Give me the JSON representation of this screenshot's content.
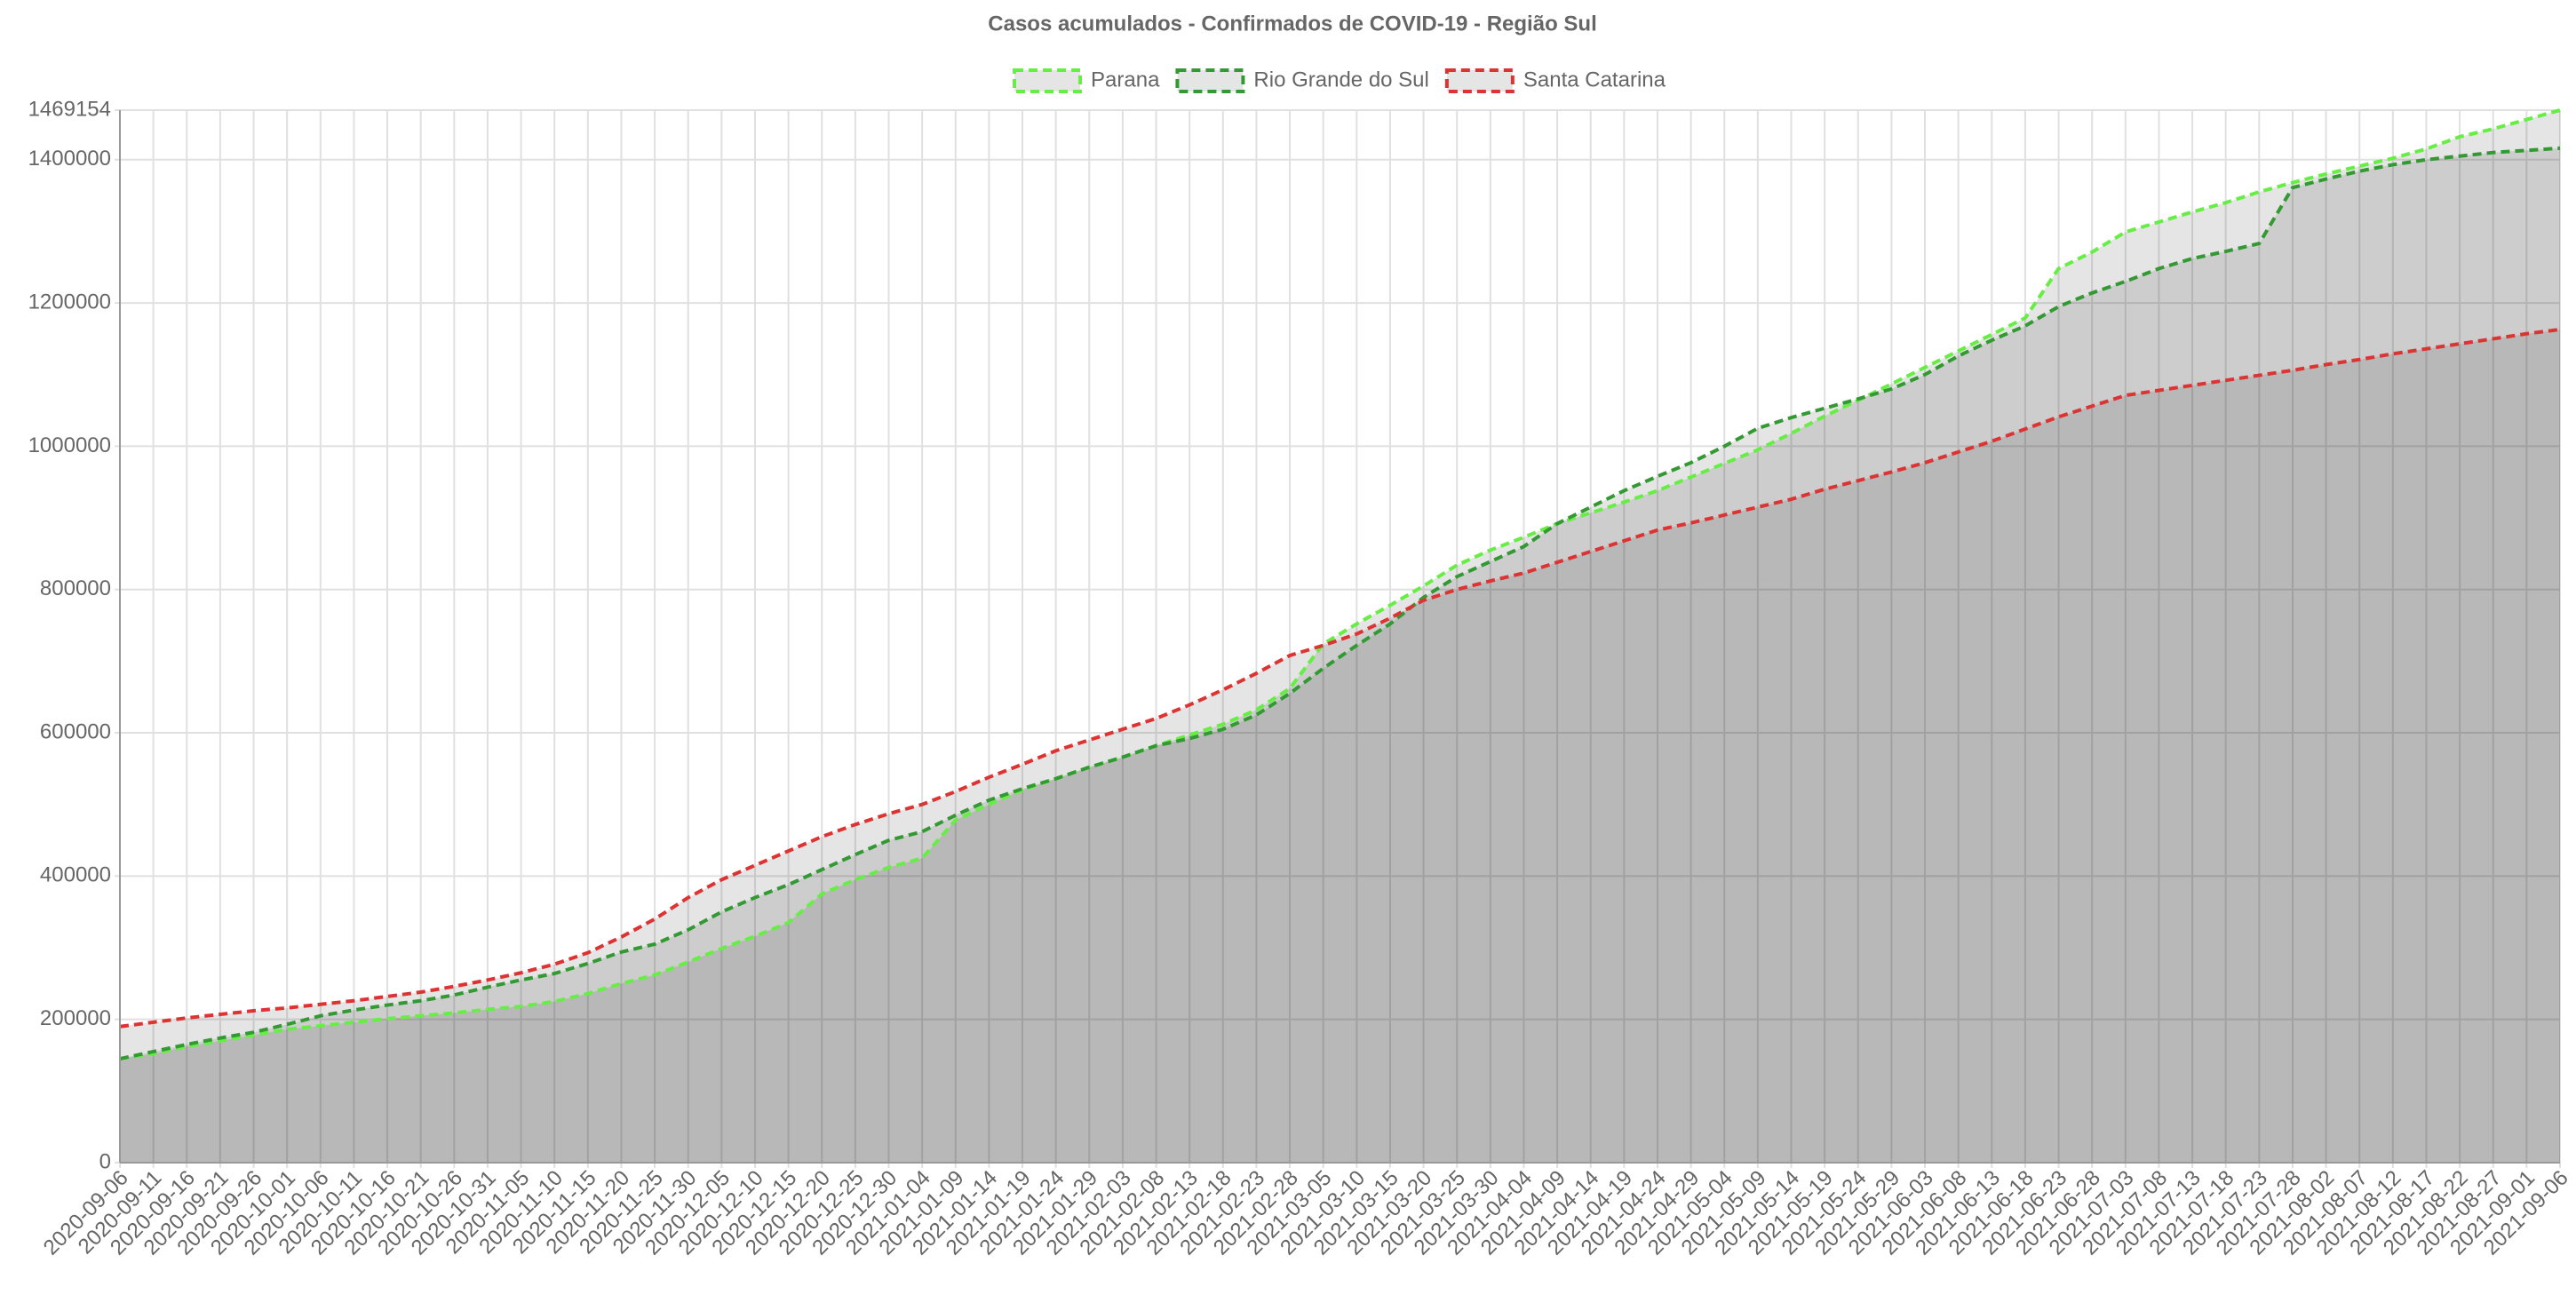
{
  "chart_data": {
    "type": "line",
    "title": "Casos acumulados - Confirmados de COVID-19 - Região Sul",
    "categories": [
      "2020-09-06",
      "2020-09-11",
      "2020-09-16",
      "2020-09-21",
      "2020-09-26",
      "2020-10-01",
      "2020-10-06",
      "2020-10-11",
      "2020-10-16",
      "2020-10-21",
      "2020-10-26",
      "2020-10-31",
      "2020-11-05",
      "2020-11-10",
      "2020-11-15",
      "2020-11-20",
      "2020-11-25",
      "2020-11-30",
      "2020-12-05",
      "2020-12-10",
      "2020-12-15",
      "2020-12-20",
      "2020-12-25",
      "2020-12-30",
      "2021-01-04",
      "2021-01-09",
      "2021-01-14",
      "2021-01-19",
      "2021-01-24",
      "2021-01-29",
      "2021-02-03",
      "2021-02-08",
      "2021-02-13",
      "2021-02-18",
      "2021-02-23",
      "2021-02-28",
      "2021-03-05",
      "2021-03-10",
      "2021-03-15",
      "2021-03-20",
      "2021-03-25",
      "2021-03-30",
      "2021-04-04",
      "2021-04-09",
      "2021-04-14",
      "2021-04-19",
      "2021-04-24",
      "2021-04-29",
      "2021-05-04",
      "2021-05-09",
      "2021-05-14",
      "2021-05-19",
      "2021-05-24",
      "2021-05-29",
      "2021-06-03",
      "2021-06-08",
      "2021-06-13",
      "2021-06-18",
      "2021-06-23",
      "2021-06-28",
      "2021-07-03",
      "2021-07-08",
      "2021-07-13",
      "2021-07-18",
      "2021-07-23",
      "2021-07-28",
      "2021-08-02",
      "2021-08-07",
      "2021-08-12",
      "2021-08-17",
      "2021-08-22",
      "2021-08-27",
      "2021-09-01",
      "2021-09-06"
    ],
    "series": [
      {
        "name": "Parana",
        "color": "#66ee44",
        "values": [
          145000,
          152000,
          162000,
          170000,
          178000,
          186000,
          191000,
          196000,
          201000,
          205000,
          209000,
          214000,
          218000,
          225000,
          236000,
          250000,
          262000,
          280000,
          299000,
          316000,
          335000,
          375000,
          395000,
          412000,
          425000,
          478000,
          500000,
          520000,
          536000,
          552000,
          566000,
          582000,
          597000,
          612000,
          632000,
          662000,
          724000,
          752000,
          778000,
          805000,
          834000,
          855000,
          873000,
          892000,
          907000,
          922000,
          938000,
          957000,
          976000,
          995000,
          1018000,
          1042000,
          1064000,
          1087000,
          1110000,
          1133000,
          1156000,
          1179000,
          1248000,
          1271000,
          1299000,
          1313000,
          1327000,
          1340000,
          1355000,
          1368000,
          1380000,
          1391000,
          1402000,
          1415000,
          1432000,
          1443000,
          1456000,
          1469154
        ]
      },
      {
        "name": "Rio Grande do Sul",
        "color": "#339933",
        "values": [
          145000,
          155000,
          165000,
          174000,
          182000,
          193000,
          205000,
          213000,
          220000,
          226000,
          234000,
          245000,
          255000,
          264000,
          278000,
          294000,
          305000,
          325000,
          350000,
          370000,
          388000,
          409000,
          430000,
          450000,
          462000,
          485000,
          506000,
          522000,
          536000,
          552000,
          566000,
          582000,
          592000,
          605000,
          625000,
          655000,
          690000,
          722000,
          752000,
          789000,
          818000,
          839000,
          860000,
          892000,
          915000,
          938000,
          958000,
          977000,
          1000000,
          1025000,
          1040000,
          1053000,
          1066000,
          1080000,
          1100000,
          1126000,
          1148000,
          1168000,
          1195000,
          1214000,
          1230000,
          1248000,
          1262000,
          1272000,
          1283000,
          1361000,
          1373000,
          1384000,
          1393000,
          1400000,
          1405000,
          1410000,
          1413000,
          1416000
        ]
      },
      {
        "name": "Santa Catarina",
        "color": "#dd3333",
        "values": [
          190000,
          196000,
          202000,
          207000,
          212000,
          216000,
          221000,
          226000,
          232000,
          238000,
          246000,
          255000,
          265000,
          277000,
          293000,
          315000,
          340000,
          370000,
          395000,
          415000,
          435000,
          455000,
          472000,
          487000,
          500000,
          518000,
          538000,
          556000,
          575000,
          590000,
          605000,
          620000,
          639000,
          660000,
          683000,
          708000,
          722000,
          738000,
          760000,
          785000,
          800000,
          812000,
          823000,
          838000,
          853000,
          868000,
          883000,
          893000,
          904000,
          915000,
          926000,
          940000,
          952000,
          964000,
          977000,
          992000,
          1007000,
          1024000,
          1041000,
          1056000,
          1071000,
          1078000,
          1085000,
          1092000,
          1099000,
          1106000,
          1114000,
          1121000,
          1129000,
          1136000,
          1143000,
          1150000,
          1157000,
          1163000
        ]
      }
    ],
    "ylim": [
      0,
      1469154
    ],
    "yticks": [
      0,
      200000,
      400000,
      600000,
      800000,
      1000000,
      1200000,
      1400000,
      1469154
    ],
    "grid": true,
    "legend": "top"
  }
}
